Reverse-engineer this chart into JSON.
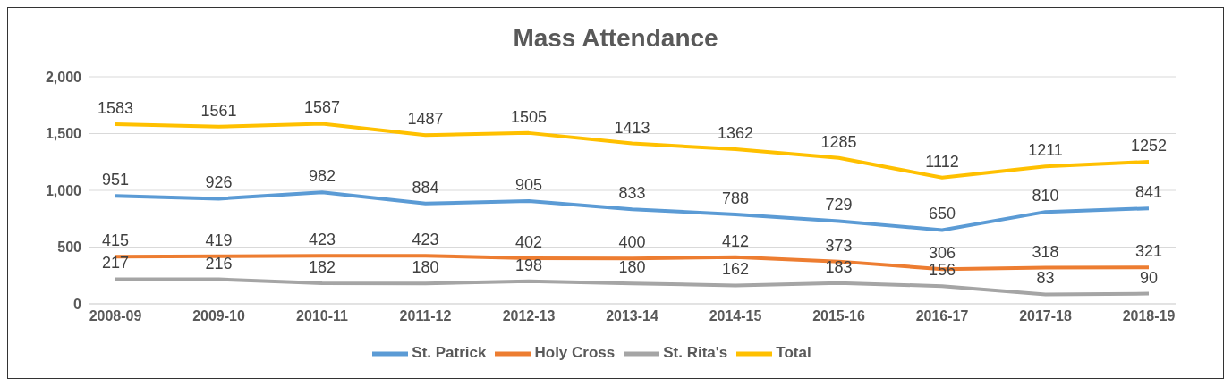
{
  "chart_data": {
    "type": "line",
    "title": "Mass Attendance",
    "categories": [
      "2008-09",
      "2009-10",
      "2010-11",
      "2011-12",
      "2012-13",
      "2013-14",
      "2014-15",
      "2015-16",
      "2016-17",
      "2017-18",
      "2018-19"
    ],
    "series": [
      {
        "name": "St. Patrick",
        "color": "#5b9bd5",
        "values": [
          951,
          926,
          982,
          884,
          905,
          833,
          788,
          729,
          650,
          810,
          841
        ]
      },
      {
        "name": "Holy Cross",
        "color": "#ed7d31",
        "values": [
          415,
          419,
          423,
          423,
          402,
          400,
          412,
          373,
          306,
          318,
          321
        ]
      },
      {
        "name": "St. Rita's",
        "color": "#a5a5a5",
        "values": [
          217,
          216,
          182,
          180,
          198,
          180,
          162,
          183,
          156,
          83,
          90
        ]
      },
      {
        "name": "Total",
        "color": "#ffc000",
        "values": [
          1583,
          1561,
          1587,
          1487,
          1505,
          1413,
          1362,
          1285,
          1112,
          1211,
          1252
        ]
      }
    ],
    "ylim": [
      0,
      2000
    ],
    "yticks": [
      0,
      {
        "value": 500,
        "label": "500"
      },
      {
        "value": 1000,
        "label": "1,000"
      },
      {
        "value": 1500,
        "label": "1,500"
      },
      {
        "value": 2000,
        "label": "2,000"
      }
    ],
    "grid": "y",
    "legend": "bottom",
    "marker": "none",
    "line_style": "solid",
    "data_labels": true
  }
}
